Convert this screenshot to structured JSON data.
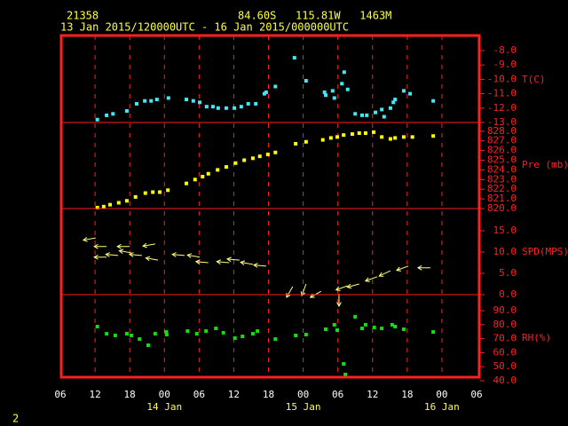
{
  "header": {
    "station": "21358",
    "location": "84.60S   115.81W   1463M",
    "period": "13 Jan 2015/120000UTC - 16 Jan 2015/000000UTC",
    "page": "2"
  },
  "x_axis": {
    "xlim": [
      6,
      78
    ],
    "xticks": [
      {
        "value": 6,
        "label": "06"
      },
      {
        "value": 12,
        "label": "12"
      },
      {
        "value": 18,
        "label": "18"
      },
      {
        "value": 24,
        "label": "00"
      },
      {
        "value": 30,
        "label": "06"
      },
      {
        "value": 36,
        "label": "12"
      },
      {
        "value": 42,
        "label": "18"
      },
      {
        "value": 48,
        "label": "00"
      },
      {
        "value": 54,
        "label": "06"
      },
      {
        "value": 60,
        "label": "12"
      },
      {
        "value": 66,
        "label": "18"
      },
      {
        "value": 72,
        "label": "00"
      },
      {
        "value": 78,
        "label": "06"
      }
    ],
    "day_labels": [
      {
        "value": 24,
        "label": "14 Jan"
      },
      {
        "value": 48,
        "label": "15 Jan"
      },
      {
        "value": 72,
        "label": "16 Jan"
      }
    ]
  },
  "chart_data": [
    {
      "type": "scatter",
      "label": "T(C)",
      "color": "#40e8f8",
      "ylim": [
        -13,
        -6.95
      ],
      "yticks": [
        {
          "value": -8,
          "label": "-8.0"
        },
        {
          "value": -9,
          "label": "-9.0"
        },
        {
          "value": -10,
          "label": "-10.0"
        },
        {
          "value": -11,
          "label": "-11.0"
        },
        {
          "value": -12,
          "label": "-12.0"
        },
        {
          "value": -13,
          "label": "-13.0"
        }
      ],
      "x": [
        12.4,
        14.0,
        15.1,
        17.5,
        19.2,
        20.6,
        21.7,
        22.7,
        24.7,
        27.8,
        29.0,
        30.1,
        31.3,
        32.4,
        33.3,
        34.7,
        36.1,
        37.3,
        38.5,
        39.8,
        41.3,
        41.6,
        43.2,
        46.5,
        48.5,
        51.7,
        51.9,
        53.1,
        53.4,
        54.7,
        55.1,
        55.7,
        57.0,
        58.2,
        59.0,
        60.5,
        61.6,
        62.0,
        63.1,
        63.6,
        63.9,
        65.4,
        66.5,
        70.5
      ],
      "values": [
        -12.8,
        -12.5,
        -12.4,
        -12.2,
        -11.7,
        -11.5,
        -11.5,
        -11.4,
        -11.3,
        -11.4,
        -11.5,
        -11.6,
        -11.9,
        -11.9,
        -12.0,
        -12.0,
        -12.0,
        -11.9,
        -11.7,
        -11.7,
        -11.0,
        -10.9,
        -10.5,
        -8.5,
        -10.1,
        -10.9,
        -11.1,
        -10.8,
        -11.3,
        -10.3,
        -9.5,
        -10.7,
        -12.4,
        -12.5,
        -12.5,
        -12.3,
        -12.1,
        -12.6,
        -12.0,
        -11.6,
        -11.4,
        -10.8,
        -11.0,
        -11.5
      ]
    },
    {
      "type": "scatter",
      "label": "Pre (mb)",
      "color": "#ffff00",
      "ylim": [
        820,
        828.9
      ],
      "yticks": [
        {
          "value": 828,
          "label": "828.0"
        },
        {
          "value": 827,
          "label": "827.0"
        },
        {
          "value": 826,
          "label": "826.0"
        },
        {
          "value": 825,
          "label": "825.0"
        },
        {
          "value": 824,
          "label": "824.0"
        },
        {
          "value": 823,
          "label": "823.0"
        },
        {
          "value": 822,
          "label": "822.0"
        },
        {
          "value": 821,
          "label": "821.0"
        },
        {
          "value": 820,
          "label": "820.0"
        }
      ],
      "x": [
        12.4,
        13.5,
        14.6,
        16.1,
        17.5,
        19.0,
        20.7,
        22.0,
        23.2,
        24.6,
        27.8,
        29.3,
        30.6,
        31.6,
        33.2,
        34.7,
        36.3,
        37.8,
        39.3,
        40.5,
        41.9,
        43.2,
        46.7,
        48.5,
        51.4,
        52.8,
        53.9,
        55.0,
        56.5,
        57.7,
        58.8,
        60.2,
        61.6,
        63.1,
        63.9,
        65.4,
        66.9,
        70.5
      ],
      "values": [
        820.1,
        820.2,
        820.4,
        820.6,
        820.8,
        821.2,
        821.6,
        821.7,
        821.7,
        821.9,
        822.6,
        823.0,
        823.3,
        823.6,
        824.0,
        824.3,
        824.7,
        825.0,
        825.2,
        825.4,
        825.6,
        825.8,
        826.7,
        826.9,
        827.1,
        827.3,
        827.4,
        827.6,
        827.7,
        827.8,
        827.8,
        827.9,
        827.4,
        827.2,
        827.3,
        827.4,
        827.4,
        827.5
      ]
    },
    {
      "type": "vector",
      "label": "SPD(MPS)",
      "color": "#ffff80",
      "ylim": [
        0,
        20.2
      ],
      "yticks": [
        {
          "value": 15,
          "label": "15.0"
        },
        {
          "value": 10,
          "label": "10.0"
        },
        {
          "value": 5,
          "label": "5.0"
        },
        {
          "value": 0,
          "label": "0.0"
        }
      ],
      "x": [
        12.1,
        14.0,
        14.0,
        16.0,
        18.0,
        18.3,
        20.1,
        22.4,
        22.9,
        27.5,
        30.1,
        31.6,
        35.2,
        37.0,
        39.3,
        41.6,
        46.2,
        48.5,
        51.1,
        54.2,
        55.7,
        57.7,
        60.8,
        63.1,
        66.2,
        70.0
      ],
      "values": [
        13.3,
        11.3,
        8.8,
        9.2,
        11.3,
        9.8,
        9.2,
        11.9,
        8.1,
        9.2,
        8.8,
        7.5,
        7.5,
        8.1,
        7.1,
        6.7,
        1.9,
        2.5,
        0.8,
        0.2,
        2.1,
        2.5,
        4.2,
        5.6,
        6.7,
        6.3
      ],
      "directions": [
        80,
        90,
        90,
        95,
        90,
        100,
        95,
        80,
        100,
        95,
        100,
        95,
        95,
        95,
        100,
        95,
        30,
        20,
        60,
        0,
        70,
        75,
        70,
        65,
        70,
        90
      ]
    },
    {
      "type": "scatter",
      "label": "RH(%)",
      "color": "#10e010",
      "ylim": [
        42.5,
        101.4
      ],
      "yticks": [
        {
          "value": 90,
          "label": "90.0"
        },
        {
          "value": 80,
          "label": "80.0"
        },
        {
          "value": 70,
          "label": "70.0"
        },
        {
          "value": 60,
          "label": "60.0"
        },
        {
          "value": 50,
          "label": "50.0"
        },
        {
          "value": 40,
          "label": "40.0"
        }
      ],
      "x": [
        12.4,
        14.0,
        15.5,
        17.5,
        18.3,
        19.7,
        21.2,
        22.4,
        24.3,
        24.4,
        28.0,
        29.6,
        31.2,
        32.9,
        34.2,
        36.2,
        37.5,
        39.3,
        40.1,
        43.2,
        46.7,
        48.5,
        51.9,
        53.4,
        53.9,
        55.0,
        55.3,
        57.0,
        58.2,
        58.8,
        60.3,
        61.6,
        63.4,
        63.9,
        65.4,
        70.5
      ],
      "values": [
        78.6,
        73.5,
        72.3,
        73.5,
        72.3,
        69.7,
        65.3,
        73.5,
        74.8,
        72.9,
        75.4,
        73.5,
        75.4,
        77.3,
        74.2,
        70.4,
        71.6,
        73.5,
        75.4,
        69.7,
        72.3,
        72.9,
        76.7,
        79.9,
        76.1,
        52.0,
        44.4,
        85.6,
        77.3,
        79.9,
        78.0,
        77.3,
        79.9,
        78.6,
        76.7,
        74.8
      ]
    }
  ]
}
